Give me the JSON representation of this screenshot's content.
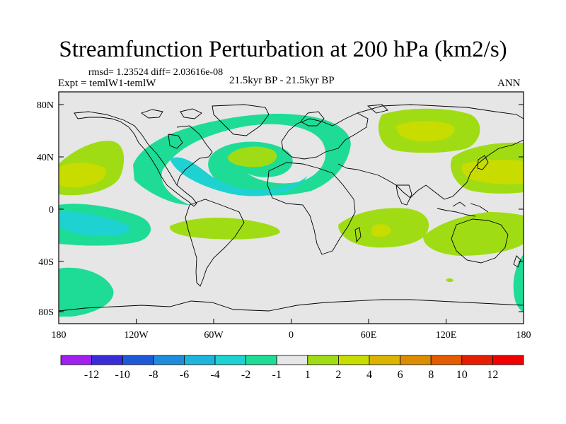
{
  "figure": {
    "title": "Streamfunction Perturbation at 200 hPa (km2/s)",
    "stats": "rmsd= 1.23524  diff= 2.03616e-08",
    "experiment": "Expt = temlW1-temlW",
    "period": "21.5kyr BP - 21.5kyr BP",
    "season": "ANN"
  },
  "axes": {
    "x_ticks": [
      "180",
      "120W",
      "60W",
      "0",
      "60E",
      "120E",
      "180"
    ],
    "y_ticks": [
      "80N",
      "40N",
      "0",
      "40S",
      "80S"
    ]
  },
  "colorbar": {
    "labels": [
      "-12",
      "-10",
      "-8",
      "-6",
      "-4",
      "-2",
      "-1",
      "1",
      "2",
      "4",
      "6",
      "8",
      "10",
      "12"
    ],
    "colors": [
      "#a020f0",
      "#3a2cd8",
      "#1e5ad8",
      "#1e8cdc",
      "#1eb4dc",
      "#1ed2d2",
      "#1edc96",
      "#e6e6e6",
      "#a0dc14",
      "#c8dc00",
      "#dcb400",
      "#dc8c00",
      "#e65a00",
      "#e61e00",
      "#f00000"
    ]
  },
  "field_colors": {
    "neg_mid": "#1edc96",
    "neg_strong": "#1ed2d2",
    "neutral": "#e6e6e6",
    "pos_mid": "#a0dc14",
    "pos_strong": "#c8dc00",
    "coast": "#000000"
  }
}
